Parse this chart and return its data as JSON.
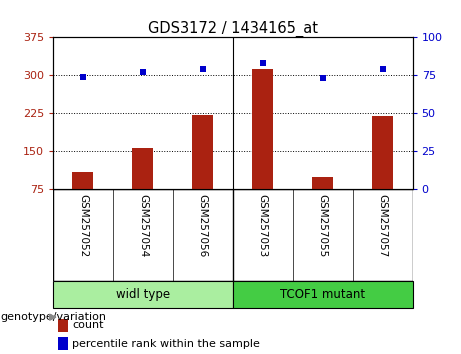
{
  "title": "GDS3172 / 1434165_at",
  "categories": [
    "GSM257052",
    "GSM257054",
    "GSM257056",
    "GSM257053",
    "GSM257055",
    "GSM257057"
  ],
  "bar_values": [
    110,
    157,
    222,
    312,
    100,
    220
  ],
  "percentile_values": [
    74,
    77,
    79,
    83,
    73,
    79
  ],
  "ylim_left": [
    75,
    375
  ],
  "ylim_right": [
    0,
    100
  ],
  "yticks_left": [
    75,
    150,
    225,
    300,
    375
  ],
  "yticks_right": [
    0,
    25,
    50,
    75,
    100
  ],
  "bar_color": "#aa2211",
  "dot_color": "#0000cc",
  "bar_width": 0.35,
  "groups": [
    {
      "label": "widl type",
      "indices": [
        0,
        1,
        2
      ],
      "color": "#aaeea0"
    },
    {
      "label": "TCOF1 mutant",
      "indices": [
        3,
        4,
        5
      ],
      "color": "#44cc44"
    }
  ],
  "genotype_label": "genotype/variation",
  "legend_count_label": "count",
  "legend_percentile_label": "percentile rank within the sample",
  "label_bg_color": "#cccccc",
  "plot_bg_color": "white",
  "fig_bg_color": "white"
}
